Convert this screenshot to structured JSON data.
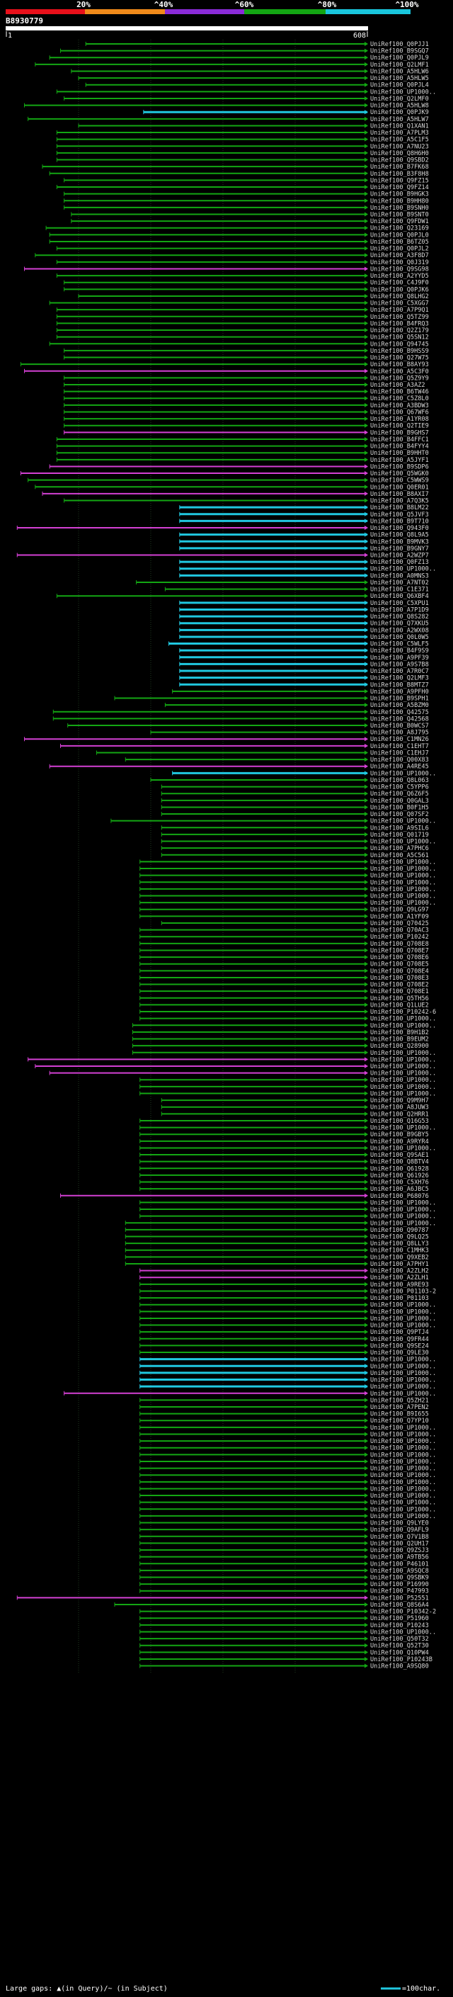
{
  "scale_bar": {
    "ticks": [
      "20%",
      "^40%",
      "^60%",
      "^80%",
      "^100%"
    ],
    "colors": [
      "#e8101a",
      "#f08a1a",
      "#8a2bd8",
      "#13a613",
      "#19c6dd"
    ]
  },
  "query_id": "B8930779",
  "axis": {
    "start": "1",
    "end": "608"
  },
  "legend": {
    "gaps_text": "Large gaps: ▲(in Query)/~ (in Subject)",
    "char_text": "=100char."
  },
  "colors": {
    "bg": "#000000",
    "green": "#13a613",
    "magenta": "#d340d3",
    "cyan": "#20c8e0",
    "grid": "#1f3a1f",
    "label": "#d8d8d8"
  },
  "hits": [
    {
      "label": "UniRef100_Q0PJJ1",
      "c": "g",
      "s": 0.22
    },
    {
      "label": "UniRef100_B9SGQ7",
      "c": "g",
      "s": 0.15
    },
    {
      "label": "UniRef100_Q0PJL9",
      "c": "g",
      "s": 0.12
    },
    {
      "label": "UniRef100_Q2LMF1",
      "c": "g",
      "s": 0.08
    },
    {
      "label": "UniRef100_A5HLW6",
      "c": "g",
      "s": 0.18
    },
    {
      "label": "UniRef100_A5HLW5",
      "c": "g",
      "s": 0.2
    },
    {
      "label": "UniRef100_Q0PJL4",
      "c": "g",
      "s": 0.22
    },
    {
      "label": "UniRef100_UP1000..",
      "c": "g",
      "s": 0.14
    },
    {
      "label": "UniRef100_Q2LMF0",
      "c": "g",
      "s": 0.16
    },
    {
      "label": "UniRef100_A5HLW8",
      "c": "g",
      "s": 0.05
    },
    {
      "label": "UniRef100_Q0PJK9",
      "c": "c",
      "s": 0.38
    },
    {
      "label": "UniRef100_A5HLW7",
      "c": "g",
      "s": 0.06
    },
    {
      "label": "UniRef100_Q1XAN1",
      "c": "g",
      "s": 0.2
    },
    {
      "label": "UniRef100_A7PLM3",
      "c": "g",
      "s": 0.14
    },
    {
      "label": "UniRef100_A5C1F5",
      "c": "g",
      "s": 0.14
    },
    {
      "label": "UniRef100_A7NU23",
      "c": "g",
      "s": 0.14
    },
    {
      "label": "UniRef100_Q8H6H0",
      "c": "g",
      "s": 0.14
    },
    {
      "label": "UniRef100_Q9SBD2",
      "c": "g",
      "s": 0.14
    },
    {
      "label": "UniRef100_B7FK68",
      "c": "g",
      "s": 0.1
    },
    {
      "label": "UniRef100_B3F8H8",
      "c": "g",
      "s": 0.12
    },
    {
      "label": "UniRef100_Q9FZ15",
      "c": "g",
      "s": 0.16
    },
    {
      "label": "UniRef100_Q9FZ14",
      "c": "g",
      "s": 0.14
    },
    {
      "label": "UniRef100_B9HGK3",
      "c": "g",
      "s": 0.16
    },
    {
      "label": "UniRef100_B9HH80",
      "c": "g",
      "s": 0.16
    },
    {
      "label": "UniRef100_B9SNH0",
      "c": "g",
      "s": 0.16
    },
    {
      "label": "UniRef100_B9SNT0",
      "c": "g",
      "s": 0.18
    },
    {
      "label": "UniRef100_Q9FDW1",
      "c": "g",
      "s": 0.18
    },
    {
      "label": "UniRef100_Q23169",
      "c": "g",
      "s": 0.11
    },
    {
      "label": "UniRef100_Q0PJL0",
      "c": "g",
      "s": 0.12
    },
    {
      "label": "UniRef100_B6TZ05",
      "c": "g",
      "s": 0.12
    },
    {
      "label": "UniRef100_Q0PJL2",
      "c": "g",
      "s": 0.14
    },
    {
      "label": "UniRef100_A3F8D7",
      "c": "g",
      "s": 0.08
    },
    {
      "label": "UniRef100_Q0J319",
      "c": "g",
      "s": 0.14
    },
    {
      "label": "UniRef100_Q9SG98",
      "c": "m",
      "s": 0.05
    },
    {
      "label": "UniRef100_A2YYD5",
      "c": "g",
      "s": 0.14
    },
    {
      "label": "UniRef100_C4J9F0",
      "c": "g",
      "s": 0.16
    },
    {
      "label": "UniRef100_Q0PJK6",
      "c": "g",
      "s": 0.16
    },
    {
      "label": "UniRef100_Q8LHG2",
      "c": "g",
      "s": 0.2
    },
    {
      "label": "UniRef100_C5XGG7",
      "c": "g",
      "s": 0.12
    },
    {
      "label": "UniRef100_A7P9Q1",
      "c": "g",
      "s": 0.14
    },
    {
      "label": "UniRef100_Q5TZ99",
      "c": "g",
      "s": 0.14
    },
    {
      "label": "UniRef100_B4FRQ3",
      "c": "g",
      "s": 0.14
    },
    {
      "label": "UniRef100_Q2Z179",
      "c": "g",
      "s": 0.14
    },
    {
      "label": "UniRef100_Q5SN12",
      "c": "g",
      "s": 0.14
    },
    {
      "label": "UniRef100_Q94745",
      "c": "g",
      "s": 0.12
    },
    {
      "label": "UniRef100_B9HSS9",
      "c": "g",
      "s": 0.16
    },
    {
      "label": "UniRef100_Q27W75",
      "c": "g",
      "s": 0.16
    },
    {
      "label": "UniRef100_B8AY93",
      "c": "g",
      "s": 0.04
    },
    {
      "label": "UniRef100_A5C3F0",
      "c": "m",
      "s": 0.05
    },
    {
      "label": "UniRef100_Q5Z9Y9",
      "c": "g",
      "s": 0.16
    },
    {
      "label": "UniRef100_A3AZ2",
      "c": "g",
      "s": 0.16
    },
    {
      "label": "UniRef100_B6TW46",
      "c": "g",
      "s": 0.16
    },
    {
      "label": "UniRef100_C5Z8L0",
      "c": "g",
      "s": 0.16
    },
    {
      "label": "UniRef100_A3BDW3",
      "c": "g",
      "s": 0.16
    },
    {
      "label": "UniRef100_Q67WF6",
      "c": "g",
      "s": 0.16
    },
    {
      "label": "UniRef100_A1YR08",
      "c": "g",
      "s": 0.16
    },
    {
      "label": "UniRef100_Q2TIE9",
      "c": "g",
      "s": 0.16
    },
    {
      "label": "UniRef100_B9GHS7",
      "c": "m",
      "s": 0.16
    },
    {
      "label": "UniRef100_B4FFC1",
      "c": "g",
      "s": 0.14
    },
    {
      "label": "UniRef100_B4FYY4",
      "c": "g",
      "s": 0.14
    },
    {
      "label": "UniRef100_B9HHT0",
      "c": "g",
      "s": 0.14
    },
    {
      "label": "UniRef100_A5JYF1",
      "c": "g",
      "s": 0.14
    },
    {
      "label": "UniRef100_B9SDP6",
      "c": "m",
      "s": 0.12
    },
    {
      "label": "UniRef100_Q5WGK0",
      "c": "m",
      "s": 0.04
    },
    {
      "label": "UniRef100_C5WWS9",
      "c": "g",
      "s": 0.06
    },
    {
      "label": "UniRef100_Q0ER01",
      "c": "g",
      "s": 0.08
    },
    {
      "label": "UniRef100_B8AXI7",
      "c": "m",
      "s": 0.1
    },
    {
      "label": "UniRef100_A7Q3K5",
      "c": "g",
      "s": 0.16
    },
    {
      "label": "UniRef100_B8LM22",
      "c": "c",
      "s": 0.48
    },
    {
      "label": "UniRef100_Q5JVF3",
      "c": "c",
      "s": 0.48
    },
    {
      "label": "UniRef100_B9T710",
      "c": "c",
      "s": 0.48
    },
    {
      "label": "UniRef100_Q943F0",
      "c": "m",
      "s": 0.03
    },
    {
      "label": "UniRef100_Q8L9A5",
      "c": "c",
      "s": 0.48
    },
    {
      "label": "UniRef100_B9MVK3",
      "c": "c",
      "s": 0.48
    },
    {
      "label": "UniRef100_B9GNY7",
      "c": "c",
      "s": 0.48
    },
    {
      "label": "UniRef100_A2WZP7",
      "c": "m",
      "s": 0.03
    },
    {
      "label": "UniRef100_Q0FZ13",
      "c": "c",
      "s": 0.48
    },
    {
      "label": "UniRef100_UP1000..",
      "c": "c",
      "s": 0.48
    },
    {
      "label": "UniRef100_A0MNS3",
      "c": "c",
      "s": 0.48
    },
    {
      "label": "UniRef100_A7NT02",
      "c": "g",
      "s": 0.36
    },
    {
      "label": "UniRef100_C1E371",
      "c": "g",
      "s": 0.44
    },
    {
      "label": "UniRef100_Q6XBF4",
      "c": "g",
      "s": 0.14
    },
    {
      "label": "UniRef100_C5XPU1",
      "c": "c",
      "s": 0.48
    },
    {
      "label": "UniRef100_A7P1D9",
      "c": "c",
      "s": 0.48
    },
    {
      "label": "UniRef100_Q8S282",
      "c": "c",
      "s": 0.48
    },
    {
      "label": "UniRef100_Q7XKU5",
      "c": "c",
      "s": 0.48
    },
    {
      "label": "UniRef100_A2WX08",
      "c": "c",
      "s": 0.48
    },
    {
      "label": "UniRef100_Q0L0W5",
      "c": "c",
      "s": 0.48
    },
    {
      "label": "UniRef100_C5WLF5",
      "c": "c",
      "s": 0.45
    },
    {
      "label": "UniRef100_B4F9S9",
      "c": "c",
      "s": 0.48
    },
    {
      "label": "UniRef100_A9PF39",
      "c": "c",
      "s": 0.48
    },
    {
      "label": "UniRef100_A9S7B8",
      "c": "c",
      "s": 0.48
    },
    {
      "label": "UniRef100_A7R0C7",
      "c": "c",
      "s": 0.48
    },
    {
      "label": "UniRef100_Q2LMF3",
      "c": "c",
      "s": 0.48
    },
    {
      "label": "UniRef100_B8MTZ7",
      "c": "c",
      "s": 0.48
    },
    {
      "label": "UniRef100_A9PFH0",
      "c": "g",
      "s": 0.46
    },
    {
      "label": "UniRef100_B9SPH1",
      "c": "g",
      "s": 0.3
    },
    {
      "label": "UniRef100_A5BZM0",
      "c": "g",
      "s": 0.44
    },
    {
      "label": "UniRef100_Q42575",
      "c": "g",
      "s": 0.13
    },
    {
      "label": "UniRef100_Q42568",
      "c": "g",
      "s": 0.13
    },
    {
      "label": "UniRef100_B0WCS7",
      "c": "g",
      "s": 0.17
    },
    {
      "label": "UniRef100_A8J795",
      "c": "g",
      "s": 0.4
    },
    {
      "label": "UniRef100_C1MN26",
      "c": "m",
      "s": 0.05
    },
    {
      "label": "UniRef100_C1EHT7",
      "c": "m",
      "s": 0.15
    },
    {
      "label": "UniRef100_C1EHJ7",
      "c": "g",
      "s": 0.25
    },
    {
      "label": "UniRef100_Q00X83",
      "c": "g",
      "s": 0.33
    },
    {
      "label": "UniRef100_A4RE45",
      "c": "m",
      "s": 0.12
    },
    {
      "label": "UniRef100_UP1000..",
      "c": "c",
      "s": 0.46
    },
    {
      "label": "UniRef100_Q8L063",
      "c": "g",
      "s": 0.4
    },
    {
      "label": "UniRef100_C5YPP6",
      "c": "g",
      "s": 0.43
    },
    {
      "label": "UniRef100_Q6Z6F5",
      "c": "g",
      "s": 0.43
    },
    {
      "label": "UniRef100_Q0GAL3",
      "c": "g",
      "s": 0.43
    },
    {
      "label": "UniRef100_B0F1H5",
      "c": "g",
      "s": 0.43
    },
    {
      "label": "UniRef100_Q07SF2",
      "c": "g",
      "s": 0.43
    },
    {
      "label": "UniRef100_UP1000..",
      "c": "g",
      "s": 0.29
    },
    {
      "label": "UniRef100_A9SIL6",
      "c": "g",
      "s": 0.43
    },
    {
      "label": "UniRef100_Q01719",
      "c": "g",
      "s": 0.43
    },
    {
      "label": "UniRef100_UP1000..",
      "c": "g",
      "s": 0.43
    },
    {
      "label": "UniRef100_A7PHC6",
      "c": "g",
      "s": 0.43
    },
    {
      "label": "UniRef100_A5C561",
      "c": "g",
      "s": 0.43
    },
    {
      "label": "UniRef100_UP1000..",
      "c": "g",
      "s": 0.37
    },
    {
      "label": "UniRef100_UP1000..",
      "c": "g",
      "s": 0.37
    },
    {
      "label": "UniRef100_UP1000..",
      "c": "g",
      "s": 0.37
    },
    {
      "label": "UniRef100_UP1000..",
      "c": "g",
      "s": 0.37
    },
    {
      "label": "UniRef100_UP1000..",
      "c": "g",
      "s": 0.37
    },
    {
      "label": "UniRef100_UP1000..",
      "c": "g",
      "s": 0.37
    },
    {
      "label": "UniRef100_UP1000..",
      "c": "g",
      "s": 0.37
    },
    {
      "label": "UniRef100_Q9LG97",
      "c": "g",
      "s": 0.37
    },
    {
      "label": "UniRef100_A1YF09",
      "c": "g",
      "s": 0.37
    },
    {
      "label": "UniRef100_Q70425",
      "c": "g",
      "s": 0.43
    },
    {
      "label": "UniRef100_Q70AC3",
      "c": "g",
      "s": 0.37
    },
    {
      "label": "UniRef100_P10242",
      "c": "g",
      "s": 0.37
    },
    {
      "label": "UniRef100_Q708E8",
      "c": "g",
      "s": 0.37
    },
    {
      "label": "UniRef100_Q708E7",
      "c": "g",
      "s": 0.37
    },
    {
      "label": "UniRef100_Q708E6",
      "c": "g",
      "s": 0.37
    },
    {
      "label": "UniRef100_Q708E5",
      "c": "g",
      "s": 0.37
    },
    {
      "label": "UniRef100_Q708E4",
      "c": "g",
      "s": 0.37
    },
    {
      "label": "UniRef100_Q708E3",
      "c": "g",
      "s": 0.37
    },
    {
      "label": "UniRef100_Q708E2",
      "c": "g",
      "s": 0.37
    },
    {
      "label": "UniRef100_Q708E1",
      "c": "g",
      "s": 0.37
    },
    {
      "label": "UniRef100_Q5TH56",
      "c": "g",
      "s": 0.37
    },
    {
      "label": "UniRef100_Q1LUE2",
      "c": "g",
      "s": 0.37
    },
    {
      "label": "UniRef100_P10242-6",
      "c": "g",
      "s": 0.37
    },
    {
      "label": "UniRef100_UP1000..",
      "c": "g",
      "s": 0.37
    },
    {
      "label": "UniRef100_UP1000..",
      "c": "g",
      "s": 0.35
    },
    {
      "label": "UniRef100_B9H1B2",
      "c": "g",
      "s": 0.35
    },
    {
      "label": "UniRef100_B9EUM2",
      "c": "g",
      "s": 0.35
    },
    {
      "label": "UniRef100_Q28900",
      "c": "g",
      "s": 0.35
    },
    {
      "label": "UniRef100_UP1000..",
      "c": "g",
      "s": 0.35
    },
    {
      "label": "UniRef100_UP1000..",
      "c": "m",
      "s": 0.06
    },
    {
      "label": "UniRef100_UP1000..",
      "c": "m",
      "s": 0.08
    },
    {
      "label": "UniRef100_UP1000..",
      "c": "m",
      "s": 0.12
    },
    {
      "label": "UniRef100_UP1000..",
      "c": "g",
      "s": 0.37
    },
    {
      "label": "UniRef100_UP1000..",
      "c": "g",
      "s": 0.37
    },
    {
      "label": "UniRef100_UP1000..",
      "c": "g",
      "s": 0.37
    },
    {
      "label": "UniRef100_Q9M9H7",
      "c": "g",
      "s": 0.43
    },
    {
      "label": "UniRef100_A8JUW3",
      "c": "g",
      "s": 0.43
    },
    {
      "label": "UniRef100_Q2HRR1",
      "c": "g",
      "s": 0.43
    },
    {
      "label": "UniRef100_Q16G53",
      "c": "g",
      "s": 0.37
    },
    {
      "label": "UniRef100_UP1000..",
      "c": "g",
      "s": 0.37
    },
    {
      "label": "UniRef100_B9GBY5",
      "c": "g",
      "s": 0.37
    },
    {
      "label": "UniRef100_A9RYR4",
      "c": "g",
      "s": 0.37
    },
    {
      "label": "UniRef100_UP1000..",
      "c": "g",
      "s": 0.37
    },
    {
      "label": "UniRef100_Q9SAE1",
      "c": "g",
      "s": 0.37
    },
    {
      "label": "UniRef100_Q8BTV4",
      "c": "g",
      "s": 0.37
    },
    {
      "label": "UniRef100_Q61928",
      "c": "g",
      "s": 0.37
    },
    {
      "label": "UniRef100_Q61926",
      "c": "g",
      "s": 0.37
    },
    {
      "label": "UniRef100_C5XH76",
      "c": "g",
      "s": 0.37
    },
    {
      "label": "UniRef100_A6JBC5",
      "c": "g",
      "s": 0.37
    },
    {
      "label": "UniRef100_P68076",
      "c": "m",
      "s": 0.15
    },
    {
      "label": "UniRef100_UP1000..",
      "c": "g",
      "s": 0.37
    },
    {
      "label": "UniRef100_UP1000..",
      "c": "g",
      "s": 0.37
    },
    {
      "label": "UniRef100_UP1000..",
      "c": "g",
      "s": 0.37
    },
    {
      "label": "UniRef100_UP1000..",
      "c": "g",
      "s": 0.33
    },
    {
      "label": "UniRef100_Q90787",
      "c": "g",
      "s": 0.33
    },
    {
      "label": "UniRef100_Q9LQ25",
      "c": "g",
      "s": 0.33
    },
    {
      "label": "UniRef100_Q8LLY3",
      "c": "g",
      "s": 0.33
    },
    {
      "label": "UniRef100_C1MHK3",
      "c": "g",
      "s": 0.33
    },
    {
      "label": "UniRef100_Q9XEB2",
      "c": "g",
      "s": 0.33
    },
    {
      "label": "UniRef100_A7PHY1",
      "c": "g",
      "s": 0.33
    },
    {
      "label": "UniRef100_A2ZLH2",
      "c": "m",
      "s": 0.37
    },
    {
      "label": "UniRef100_A2ZLH1",
      "c": "m",
      "s": 0.37
    },
    {
      "label": "UniRef100_A9RE93",
      "c": "g",
      "s": 0.37
    },
    {
      "label": "UniRef100_P01103-2",
      "c": "g",
      "s": 0.37
    },
    {
      "label": "UniRef100_P01103",
      "c": "g",
      "s": 0.37
    },
    {
      "label": "UniRef100_UP1000..",
      "c": "g",
      "s": 0.37
    },
    {
      "label": "UniRef100_UP1000..",
      "c": "g",
      "s": 0.37
    },
    {
      "label": "UniRef100_UP1000..",
      "c": "g",
      "s": 0.37
    },
    {
      "label": "UniRef100_UP1000..",
      "c": "g",
      "s": 0.37
    },
    {
      "label": "UniRef100_Q9PTJ4",
      "c": "g",
      "s": 0.37
    },
    {
      "label": "UniRef100_Q9FR44",
      "c": "g",
      "s": 0.37
    },
    {
      "label": "UniRef100_Q9SE24",
      "c": "g",
      "s": 0.37
    },
    {
      "label": "UniRef100_Q9LE30",
      "c": "g",
      "s": 0.37
    },
    {
      "label": "UniRef100_UP1000..",
      "c": "c",
      "s": 0.37
    },
    {
      "label": "UniRef100_UP1000..",
      "c": "c",
      "s": 0.37
    },
    {
      "label": "UniRef100_UP1000..",
      "c": "c",
      "s": 0.37
    },
    {
      "label": "UniRef100_UP1000..",
      "c": "c",
      "s": 0.37
    },
    {
      "label": "UniRef100_UP1000..",
      "c": "c",
      "s": 0.37
    },
    {
      "label": "UniRef100_UP1000..",
      "c": "m",
      "s": 0.16
    },
    {
      "label": "UniRef100_Q5ZH21",
      "c": "g",
      "s": 0.37
    },
    {
      "label": "UniRef100_A7PEN2",
      "c": "g",
      "s": 0.37
    },
    {
      "label": "UniRef100_B9I655",
      "c": "g",
      "s": 0.37
    },
    {
      "label": "UniRef100_Q7YP10",
      "c": "g",
      "s": 0.37
    },
    {
      "label": "UniRef100_UP1000..",
      "c": "g",
      "s": 0.37
    },
    {
      "label": "UniRef100_UP1000..",
      "c": "g",
      "s": 0.37
    },
    {
      "label": "UniRef100_UP1000..",
      "c": "g",
      "s": 0.37
    },
    {
      "label": "UniRef100_UP1000..",
      "c": "g",
      "s": 0.37
    },
    {
      "label": "UniRef100_UP1000..",
      "c": "g",
      "s": 0.37
    },
    {
      "label": "UniRef100_UP1000..",
      "c": "g",
      "s": 0.37
    },
    {
      "label": "UniRef100_UP1000..",
      "c": "g",
      "s": 0.37
    },
    {
      "label": "UniRef100_UP1000..",
      "c": "g",
      "s": 0.37
    },
    {
      "label": "UniRef100_UP1000..",
      "c": "g",
      "s": 0.37
    },
    {
      "label": "UniRef100_UP1000..",
      "c": "g",
      "s": 0.37
    },
    {
      "label": "UniRef100_UP1000..",
      "c": "g",
      "s": 0.37
    },
    {
      "label": "UniRef100_UP1000..",
      "c": "g",
      "s": 0.37
    },
    {
      "label": "UniRef100_UP1000..",
      "c": "g",
      "s": 0.37
    },
    {
      "label": "UniRef100_UP1000..",
      "c": "g",
      "s": 0.37
    },
    {
      "label": "UniRef100_Q9LYE0",
      "c": "g",
      "s": 0.37
    },
    {
      "label": "UniRef100_Q9AFL9",
      "c": "g",
      "s": 0.37
    },
    {
      "label": "UniRef100_Q7V1B8",
      "c": "g",
      "s": 0.37
    },
    {
      "label": "UniRef100_Q2UH17",
      "c": "g",
      "s": 0.37
    },
    {
      "label": "UniRef100_Q9ZSJ3",
      "c": "g",
      "s": 0.37
    },
    {
      "label": "UniRef100_A9TB56",
      "c": "g",
      "s": 0.37
    },
    {
      "label": "UniRef100_P46101",
      "c": "g",
      "s": 0.37
    },
    {
      "label": "UniRef100_A9SQC8",
      "c": "g",
      "s": 0.37
    },
    {
      "label": "UniRef100_Q9SBK9",
      "c": "g",
      "s": 0.37
    },
    {
      "label": "UniRef100_P16990",
      "c": "g",
      "s": 0.37
    },
    {
      "label": "UniRef100_P47993",
      "c": "g",
      "s": 0.37
    },
    {
      "label": "UniRef100_P52551",
      "c": "m",
      "s": 0.03
    },
    {
      "label": "UniRef100_Q8S6A4",
      "c": "g",
      "s": 0.3
    },
    {
      "label": "UniRef100_P10342-2",
      "c": "g",
      "s": 0.37
    },
    {
      "label": "UniRef100_P51960",
      "c": "g",
      "s": 0.37
    },
    {
      "label": "UniRef100_P10243",
      "c": "g",
      "s": 0.37
    },
    {
      "label": "UniRef100_UP1000..",
      "c": "g",
      "s": 0.37
    },
    {
      "label": "UniRef100_Q50T32",
      "c": "g",
      "s": 0.37
    },
    {
      "label": "UniRef100_Q52T30",
      "c": "g",
      "s": 0.37
    },
    {
      "label": "UniRef100_Q10PW4",
      "c": "g",
      "s": 0.37
    },
    {
      "label": "UniRef100_P10243B",
      "c": "g",
      "s": 0.37
    },
    {
      "label": "UniRef100_A9SQ80",
      "c": "g",
      "s": 0.37
    }
  ]
}
